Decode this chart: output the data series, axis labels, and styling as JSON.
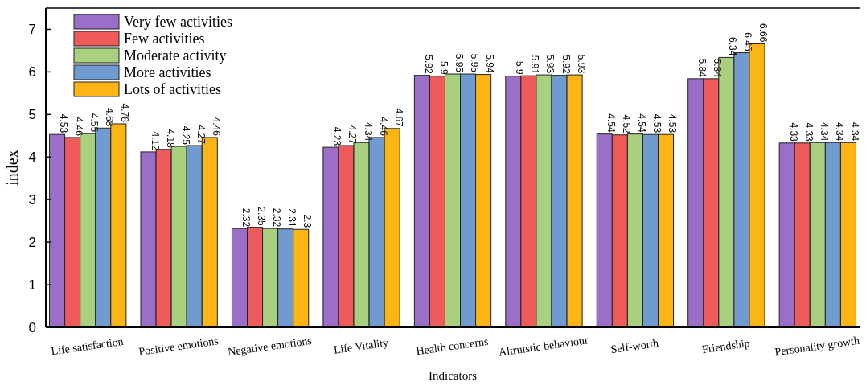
{
  "chart_data": {
    "type": "bar",
    "xlabel": "Indicators",
    "ylabel": "index",
    "categories": [
      "Life satisfaction",
      "Positive emotions",
      "Negative emotions",
      "Life Vitality",
      "Health concerns",
      "Altruistic behaviour",
      "Self-worth",
      "Friendship",
      "Personality growth"
    ],
    "series": [
      {
        "name": "Very few activities",
        "color": "#9b6fc8",
        "values": [
          4.53,
          4.12,
          2.32,
          4.23,
          5.92,
          5.9,
          4.54,
          5.84,
          4.33
        ]
      },
      {
        "name": "Few activities",
        "color": "#ef5b5b",
        "values": [
          4.46,
          4.18,
          2.35,
          4.27,
          5.9,
          5.91,
          4.52,
          5.84,
          4.33
        ]
      },
      {
        "name": "Moderate activity",
        "color": "#a9d07f",
        "values": [
          4.55,
          4.25,
          2.32,
          4.34,
          5.95,
          5.93,
          4.54,
          6.34,
          4.34
        ]
      },
      {
        "name": "More activities",
        "color": "#6f9bd1",
        "values": [
          4.68,
          4.27,
          2.31,
          4.46,
          5.95,
          5.92,
          4.53,
          6.45,
          4.34
        ]
      },
      {
        "name": "Lots of activities",
        "color": "#fdb515",
        "values": [
          4.78,
          4.46,
          2.3,
          4.67,
          5.94,
          5.93,
          4.53,
          6.66,
          4.34
        ]
      }
    ],
    "ylim": [
      0,
      7.5
    ],
    "yticks": [
      0,
      1,
      2,
      3,
      4,
      5,
      6,
      7
    ],
    "data_labels": true,
    "legend": "top left",
    "grid": false
  }
}
